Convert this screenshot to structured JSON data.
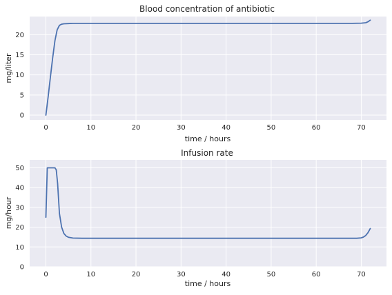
{
  "chart_data": [
    {
      "type": "line",
      "title": "Blood concentration of antibiotic",
      "xlabel": "time / hours",
      "ylabel": "mg/liter",
      "xlim": [
        -3.6,
        75.6
      ],
      "ylim": [
        -1.2,
        24.5
      ],
      "xticks": [
        0,
        10,
        20,
        30,
        40,
        50,
        60,
        70
      ],
      "yticks": [
        0,
        5,
        10,
        15,
        20
      ],
      "grid": true,
      "series": [
        {
          "color": "#4c72b0",
          "x": [
            0,
            0.5,
            1,
            1.5,
            2,
            2.5,
            3,
            3.5,
            4,
            5,
            6,
            8,
            10,
            20,
            30,
            40,
            50,
            60,
            68,
            70,
            71,
            71.5,
            72
          ],
          "y": [
            0,
            4.6,
            9.4,
            14.2,
            18.5,
            21.2,
            22.3,
            22.6,
            22.7,
            22.75,
            22.8,
            22.8,
            22.8,
            22.8,
            22.8,
            22.8,
            22.8,
            22.8,
            22.8,
            22.85,
            22.95,
            23.2,
            23.6
          ]
        }
      ]
    },
    {
      "type": "line",
      "title": "Infusion rate",
      "xlabel": "time / hours",
      "ylabel": "mg/hour",
      "xlim": [
        -3.6,
        75.6
      ],
      "ylim": [
        0,
        54
      ],
      "xticks": [
        0,
        10,
        20,
        30,
        40,
        50,
        60,
        70
      ],
      "yticks": [
        0,
        10,
        20,
        30,
        40,
        50
      ],
      "grid": true,
      "series": [
        {
          "color": "#4c72b0",
          "x": [
            0,
            0.3,
            1,
            2,
            2.3,
            2.6,
            3,
            3.5,
            4,
            4.5,
            5,
            6,
            8,
            10,
            20,
            30,
            40,
            50,
            60,
            69,
            70,
            70.5,
            71,
            71.5,
            72
          ],
          "y": [
            25,
            50,
            50,
            50,
            49,
            42,
            27,
            20,
            16.8,
            15.5,
            14.9,
            14.5,
            14.4,
            14.4,
            14.4,
            14.4,
            14.4,
            14.4,
            14.4,
            14.4,
            14.6,
            15,
            15.8,
            17.2,
            19.3
          ]
        }
      ]
    }
  ]
}
